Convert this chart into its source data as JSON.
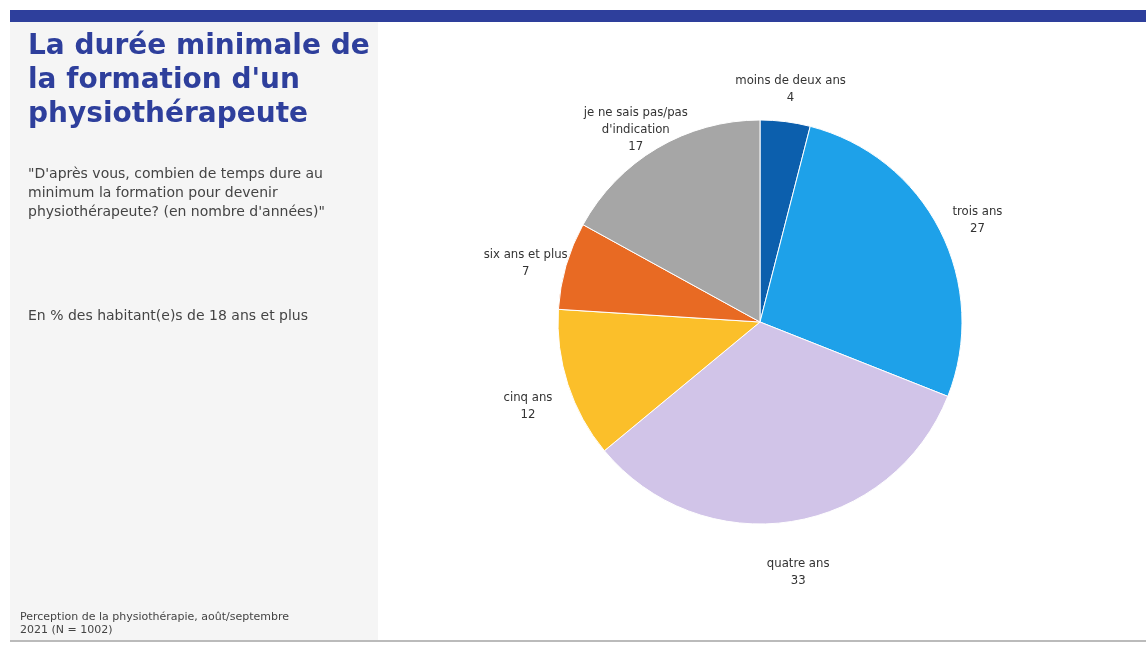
{
  "chart_data": {
    "type": "pie",
    "title": "La durée minimale de la formation d'un physiothérapeute",
    "subtitle": "\"D'après vous, combien de temps dure au minimum la formation pour devenir physiothérapeute? (en nombre d'années)\"",
    "annotations": [
      "En % des habitant(e)s de 18 ans et plus",
      "Perception de la physiothérapie, août/septembre 2021 (N = 1002)"
    ],
    "categories": [
      "moins de deux ans",
      "trois ans",
      "quatre ans",
      "cinq ans",
      "six ans et plus",
      "je ne sais pas/pas d'indication"
    ],
    "values": [
      4,
      27,
      33,
      12,
      7,
      17
    ],
    "colors": [
      "#0c5fad",
      "#1ea1e9",
      "#d1c4e8",
      "#fbbf2a",
      "#e86a23",
      "#a6a6a6"
    ],
    "data_labels": true
  }
}
